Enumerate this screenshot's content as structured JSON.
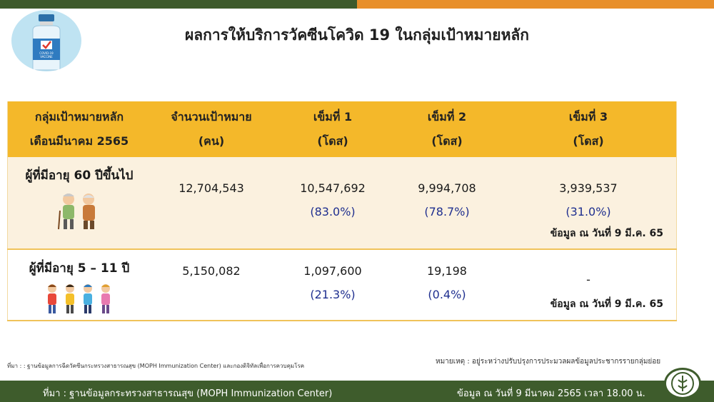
{
  "title": "ผลการให้บริการวัคซีนโควิด 19 ในกลุ่มเป้าหมายหลัก",
  "logo": {
    "icon": "vaccine-bottle-icon",
    "label_line1": "COVID-19",
    "label_line2": "VACCINE"
  },
  "table": {
    "headers": [
      {
        "line1": "กลุ่มเป้าหมายหลัก",
        "line2": "เดือนมีนาคม 2565"
      },
      {
        "line1": "จำนวนเป้าหมาย",
        "line2": "(คน)"
      },
      {
        "line1": "เข็มที่ 1",
        "line2": "(โดส)"
      },
      {
        "line1": "เข็มที่ 2",
        "line2": "(โดส)"
      },
      {
        "line1": "เข็มที่ 3",
        "line2": "(โดส)"
      }
    ],
    "rows": [
      {
        "group": "ผู้ที่มีอายุ 60 ปีขึ้นไป",
        "icon": "elderly-couple-icon",
        "target": "12,704,543",
        "dose1": "10,547,692",
        "dose1_pct": "(83.0%)",
        "dose2": "9,994,708",
        "dose2_pct": "(78.7%)",
        "dose3": "3,939,537",
        "dose3_pct": "(31.0%)",
        "asof": "ข้อมูล ณ วันที่ 9 มี.ค. 65"
      },
      {
        "group": "ผู้ที่มีอายุ 5 – 11 ปี",
        "icon": "children-group-icon",
        "target": "5,150,082",
        "dose1": "1,097,600",
        "dose1_pct": "(21.3%)",
        "dose2": "19,198",
        "dose2_pct": "(0.4%)",
        "dose3": "-",
        "asof": "ข้อมูล ณ วันที่ 9 มี.ค. 65"
      }
    ]
  },
  "footnote_left": "ที่มา : : ฐานข้อมูลการฉีดวัคซีนกระทรวงสาธารณสุข (MOPH Immunization Center) และกองดิจิทัลเพื่อการควบคุมโรค",
  "footnote_right": "หมายเหตุ : อยู่ระหว่างปรับปรุงการประมวลผลข้อมูลประชากรรายกลุ่มย่อย",
  "bottom_left": "ที่มา : ฐานข้อมูลกระทรวงสาธารณสุข (MOPH  Immunization Center)",
  "bottom_right": "ข้อมูล ณ วันที่ 9 มีนาคม 2565 เวลา 18.00 น.",
  "moph_logo": {
    "icon": "moph-emblem-icon"
  },
  "colors": {
    "header": "#f4b82a",
    "row_alt": "#fbf1df",
    "bar_green": "#3e5c2c",
    "bar_orange": "#e88f2a",
    "pct_blue": "#1f2f8f"
  }
}
